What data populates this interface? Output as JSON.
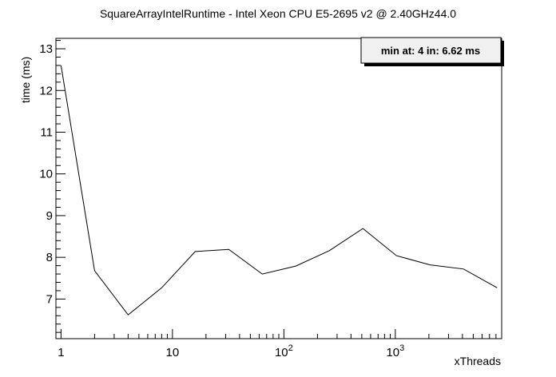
{
  "chart_data": {
    "type": "line",
    "title": "SquareArrayIntelRuntime - Intel Xeon CPU E5-2695 v2 @ 2.40GHz44.0",
    "xlabel": "xThreads",
    "ylabel": "time (ms)",
    "xscale": "log",
    "xlim": [
      0.9,
      9000
    ],
    "ylim": [
      6.05,
      13.25
    ],
    "grid": false,
    "x_tick_labels": [
      "1",
      "10",
      "10^2",
      "10^3"
    ],
    "y_tick_labels": [
      "7",
      "8",
      "9",
      "10",
      "11",
      "12",
      "13"
    ],
    "annotation": "min at: 4 in: 6.62 ms",
    "series": [
      {
        "x": [
          1,
          2,
          4,
          8,
          16,
          32,
          64,
          128,
          256,
          512,
          1024,
          2048,
          4096,
          8192
        ],
        "y": [
          12.6,
          7.68,
          6.62,
          7.27,
          8.14,
          8.19,
          7.6,
          7.79,
          8.16,
          8.69,
          8.04,
          7.82,
          7.72,
          7.27
        ]
      }
    ]
  }
}
